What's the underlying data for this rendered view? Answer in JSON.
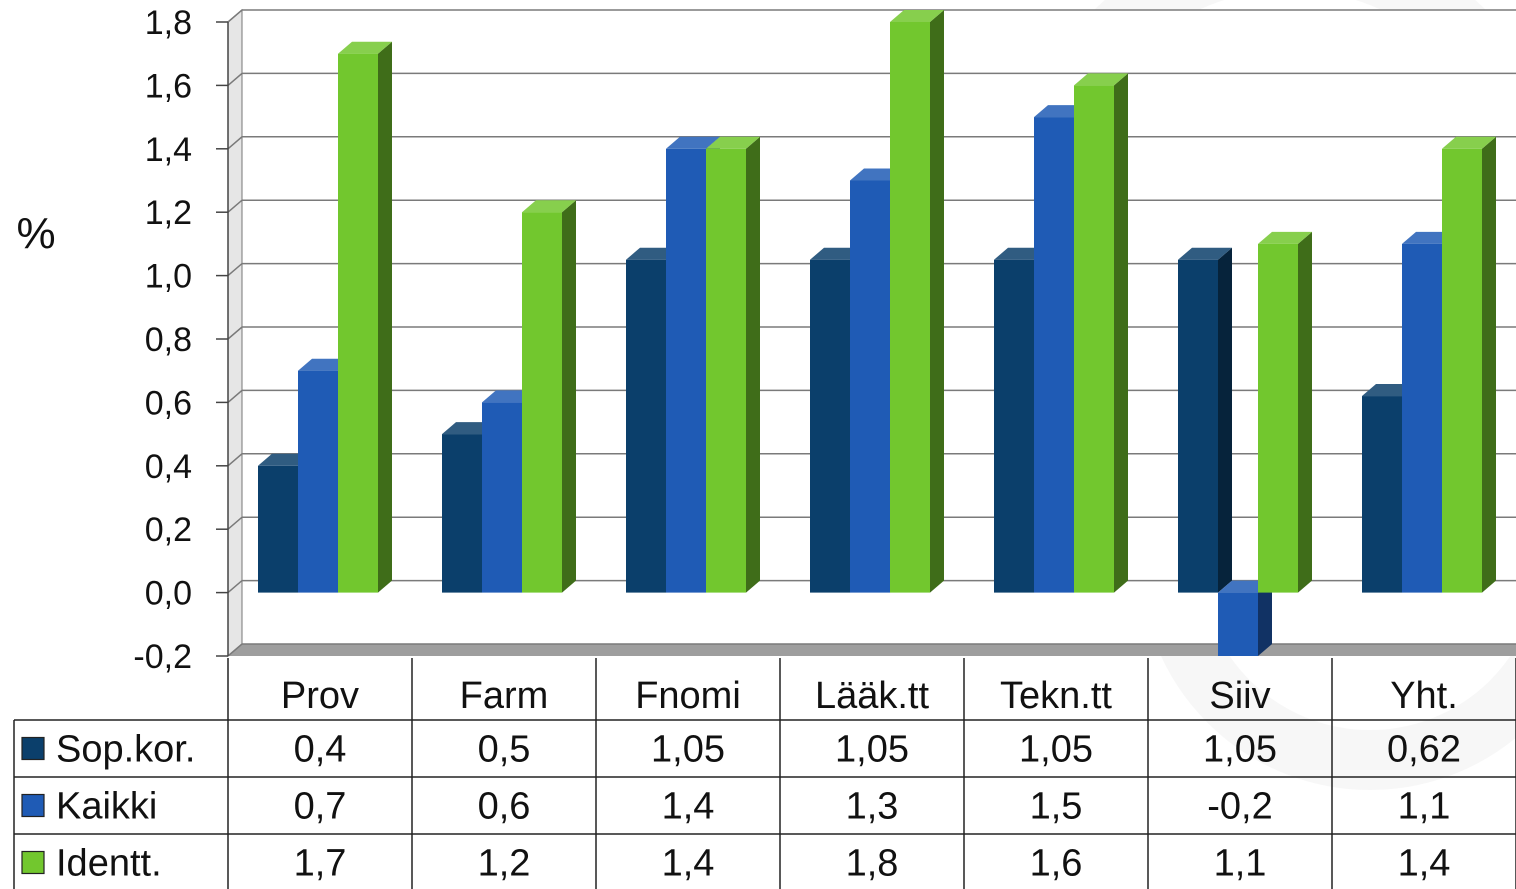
{
  "chart_data": {
    "type": "bar",
    "title": "",
    "xlabel": "",
    "ylabel": "%",
    "ylim": [
      -0.2,
      1.8
    ],
    "yticks": [
      "1,8",
      "1,6",
      "1,4",
      "1,2",
      "1,0",
      "0,8",
      "0,6",
      "0,4",
      "0,2",
      "0,0",
      "-0,2"
    ],
    "ytick_values": [
      1.8,
      1.6,
      1.4,
      1.2,
      1.0,
      0.8,
      0.6,
      0.4,
      0.2,
      0.0,
      -0.2
    ],
    "grid": true,
    "legend": "data-table",
    "categories": [
      "Prov",
      "Farm",
      "Fnomi",
      "Lääk.tt",
      "Tekn.tt",
      "Siiv",
      "Yht."
    ],
    "series": [
      {
        "name": "Sop.kor.",
        "color": "#0b3f6b",
        "values": [
          0.4,
          0.5,
          1.05,
          1.05,
          1.05,
          1.05,
          0.62
        ],
        "labels": [
          "0,4",
          "0,5",
          "1,05",
          "1,05",
          "1,05",
          "1,05",
          "0,62"
        ]
      },
      {
        "name": "Kaikki",
        "color": "#1f5bb5",
        "values": [
          0.7,
          0.6,
          1.4,
          1.3,
          1.5,
          -0.2,
          1.1
        ],
        "labels": [
          "0,7",
          "0,6",
          "1,4",
          "1,3",
          "1,5",
          "-0,2",
          "1,1"
        ]
      },
      {
        "name": "Identt.",
        "color": "#72c72e",
        "values": [
          1.7,
          1.2,
          1.4,
          1.8,
          1.6,
          1.1,
          1.4
        ],
        "labels": [
          "1,7",
          "1,2",
          "1,4",
          "1,8",
          "1,6",
          "1,1",
          "1,4"
        ]
      }
    ]
  }
}
